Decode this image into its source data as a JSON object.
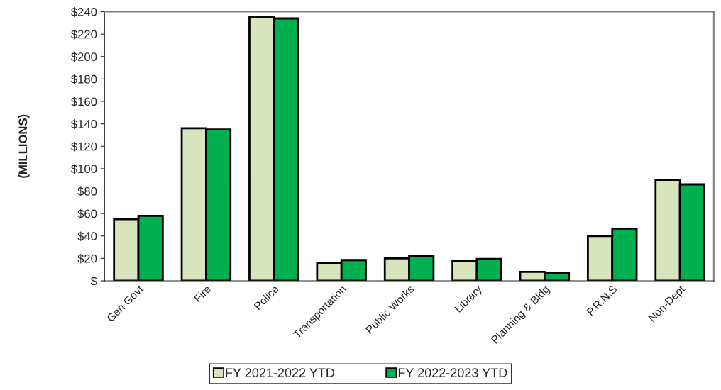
{
  "chart_data": {
    "type": "bar",
    "ylabel": "(MILLIONS)",
    "categories": [
      "Gen Govt",
      "Fire",
      "Police",
      "Transportation",
      "Public Works",
      "Library",
      "Planning & Bldg",
      "P.R.N.S",
      "Non-Dept"
    ],
    "series": [
      {
        "name": "FY 2021-2022 YTD",
        "color": "#d8e4bc",
        "values": [
          55,
          136,
          235.5,
          16,
          20,
          18,
          8,
          40,
          90
        ]
      },
      {
        "name": "FY 2022-2023 YTD",
        "color": "#00b050",
        "values": [
          58,
          135,
          234,
          18.5,
          22,
          19.5,
          7,
          46.5,
          86
        ]
      }
    ],
    "ylim": [
      0,
      240
    ],
    "yticks": [
      {
        "value": 0,
        "label": "$"
      },
      {
        "value": 20,
        "label": "$20"
      },
      {
        "value": 40,
        "label": "$40"
      },
      {
        "value": 60,
        "label": "$60"
      },
      {
        "value": 80,
        "label": "$80"
      },
      {
        "value": 100,
        "label": "$100"
      },
      {
        "value": 120,
        "label": "$120"
      },
      {
        "value": 140,
        "label": "$140"
      },
      {
        "value": 160,
        "label": "$160"
      },
      {
        "value": 180,
        "label": "$180"
      },
      {
        "value": 200,
        "label": "$200"
      },
      {
        "value": 220,
        "label": "$220"
      },
      {
        "value": 240,
        "label": "$240"
      }
    ],
    "grid": false,
    "legend": "bottom"
  }
}
